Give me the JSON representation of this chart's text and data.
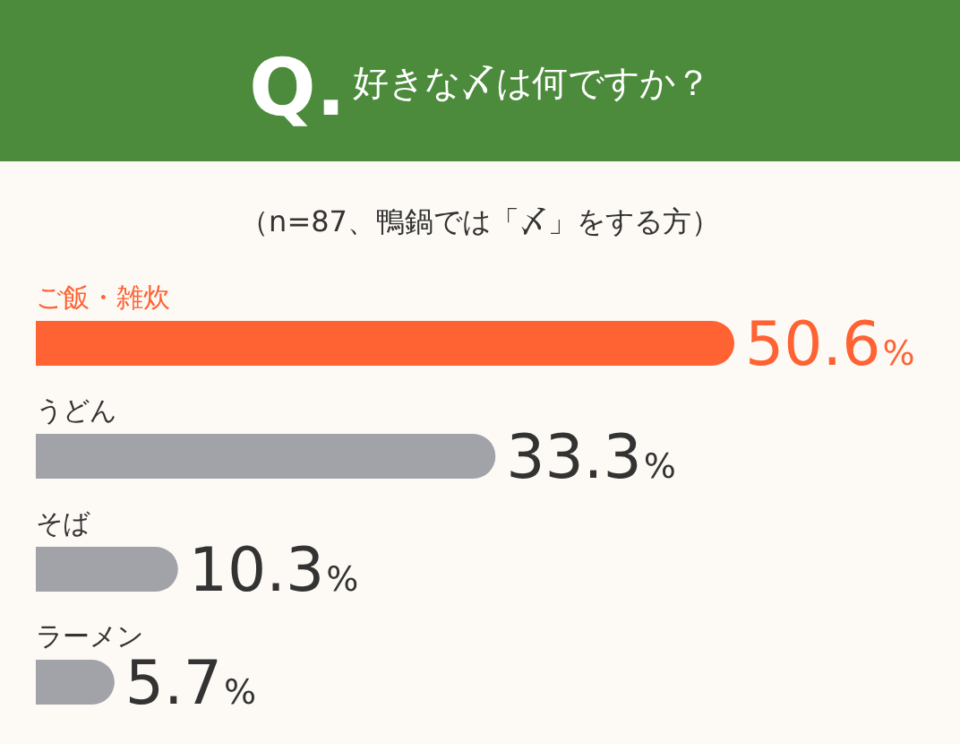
{
  "chart_data": {
    "type": "bar",
    "orientation": "horizontal",
    "title": "Q.好きな〆は何ですか？",
    "subtitle": "（n=87、鴨鍋では「〆」をする方）",
    "categories": [
      "ご飯・雑炊",
      "うどん",
      "そば",
      "ラーメン"
    ],
    "values": [
      50.6,
      33.3,
      10.3,
      5.7
    ],
    "colors": [
      "#ff6233",
      "#a1a3a8",
      "#a1a3a8",
      "#a1a3a8"
    ],
    "value_labels": [
      "50.6%",
      "33.3%",
      "10.3%",
      "5.7%"
    ]
  }
}
